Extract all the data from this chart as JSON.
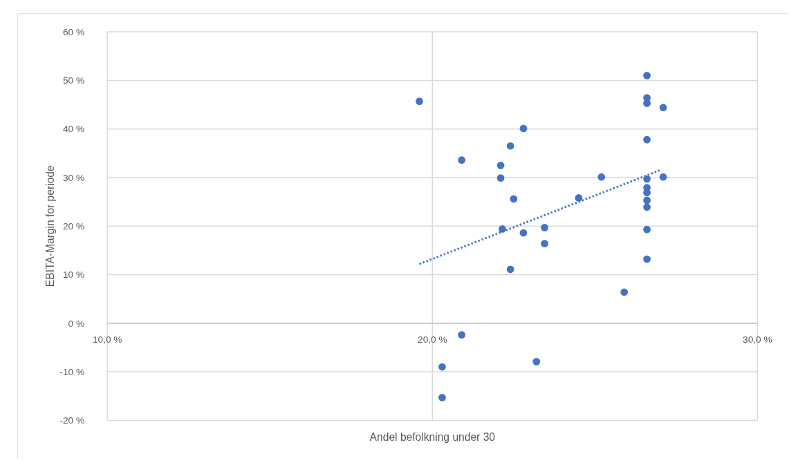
{
  "chart_data": {
    "type": "scatter",
    "xlabel": "Andel befolkning under 30",
    "ylabel": "EBITA-Margin for periode",
    "xlim": [
      10,
      30
    ],
    "xticks": [
      {
        "value": 10,
        "label": "10,0 %"
      },
      {
        "value": 20,
        "label": "20,0 %"
      },
      {
        "value": 30,
        "label": "30,0 %"
      }
    ],
    "ylim": [
      -20,
      60
    ],
    "yticks": [
      {
        "value": -20,
        "label": "-20 %"
      },
      {
        "value": -10,
        "label": "-10 %"
      },
      {
        "value": 0,
        "label": "0 %"
      },
      {
        "value": 10,
        "label": "10 %"
      },
      {
        "value": 20,
        "label": "20 %"
      },
      {
        "value": 30,
        "label": "30 %"
      },
      {
        "value": 40,
        "label": "40 %"
      },
      {
        "value": 50,
        "label": "50 %"
      },
      {
        "value": 60,
        "label": "60 %"
      }
    ],
    "grid": true,
    "series": [
      {
        "color": "#4472c4",
        "marker": "circle",
        "x": [
          19.6,
          20.9,
          22.1,
          22.1,
          22.4,
          22.8,
          22.5,
          22.15,
          22.8,
          23.45,
          23.45,
          22.4,
          24.5,
          25.2,
          25.9,
          26.6,
          26.6,
          26.6,
          27.1,
          26.6,
          26.6,
          26.6,
          26.6,
          26.6,
          26.6,
          26.6,
          26.6,
          27.1,
          20.9,
          20.3,
          20.3,
          23.2
        ],
        "values": [
          45.7,
          33.6,
          32.5,
          29.9,
          36.5,
          40.1,
          25.6,
          19.4,
          18.6,
          19.7,
          16.4,
          11.1,
          25.8,
          30.1,
          6.4,
          51.0,
          46.4,
          45.3,
          44.4,
          37.8,
          29.7,
          27.9,
          26.9,
          25.3,
          23.9,
          19.3,
          13.2,
          30.1,
          -2.4,
          -9.0,
          -15.3,
          -7.9
        ]
      },
      {
        "type": "line",
        "color": "#4472c4",
        "marker": "none",
        "line_style": "dotted",
        "x": [
          19.6,
          27.0
        ],
        "values": [
          12.2,
          31.5
        ]
      }
    ]
  }
}
